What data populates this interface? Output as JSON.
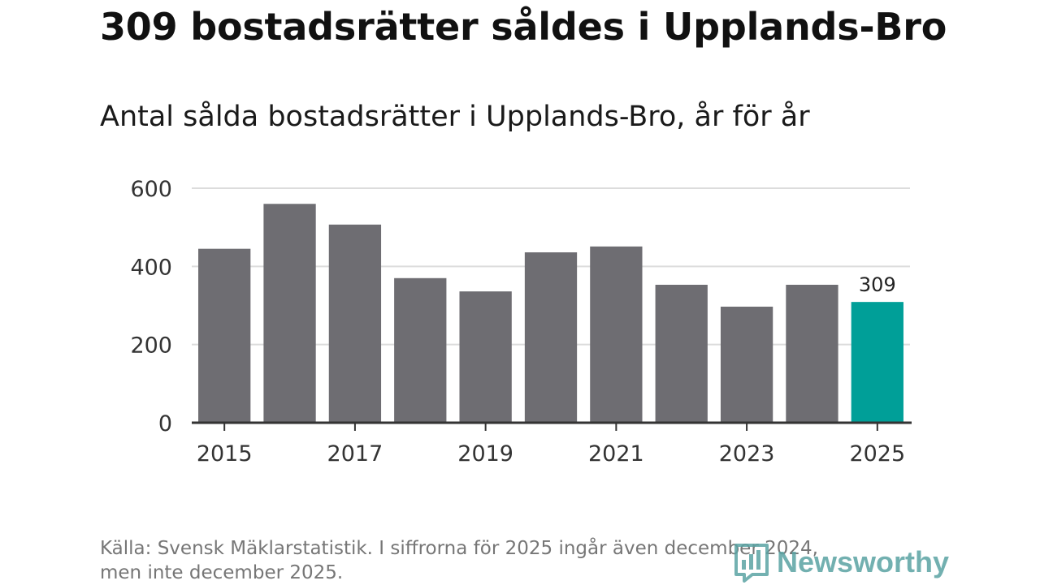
{
  "colors": {
    "bar": "#6e6d72",
    "highlight": "#009f98",
    "grid": "#dcdcdc",
    "axis": "#333333",
    "brand": "#5aa3a3"
  },
  "header": {
    "title": "309 bostadsrätter såldes i Upplands-Bro",
    "subtitle": "Antal sålda bostadsrätter i Upplands-Bro, år för år"
  },
  "footer": {
    "source_line1": "Källa: Svensk Mäklarstatistik. I siffrorna för 2025 ingår även december 2024,",
    "source_line2": "men inte december 2025.",
    "brand_name": "Newsworthy",
    "brand_icon": "bar-chart-logo-icon"
  },
  "chart_data": {
    "type": "bar",
    "title": "Antal sålda bostadsrätter i Upplands-Bro, år för år",
    "xlabel": "",
    "ylabel": "",
    "categories": [
      "2015",
      "2016",
      "2017",
      "2018",
      "2019",
      "2020",
      "2021",
      "2022",
      "2023",
      "2024",
      "2025"
    ],
    "values": [
      445,
      560,
      507,
      370,
      336,
      436,
      451,
      353,
      297,
      353,
      309
    ],
    "highlight_index": 10,
    "data_labels": [
      {
        "index": 10,
        "text": "309"
      }
    ],
    "ylim": [
      0,
      600
    ],
    "yticks": [
      0,
      200,
      400,
      600
    ],
    "ytick_labels": [
      "0",
      "200",
      "400",
      "600"
    ],
    "xtick_labels": [
      "2015",
      "2017",
      "2019",
      "2021",
      "2023",
      "2025"
    ],
    "grid": true
  }
}
